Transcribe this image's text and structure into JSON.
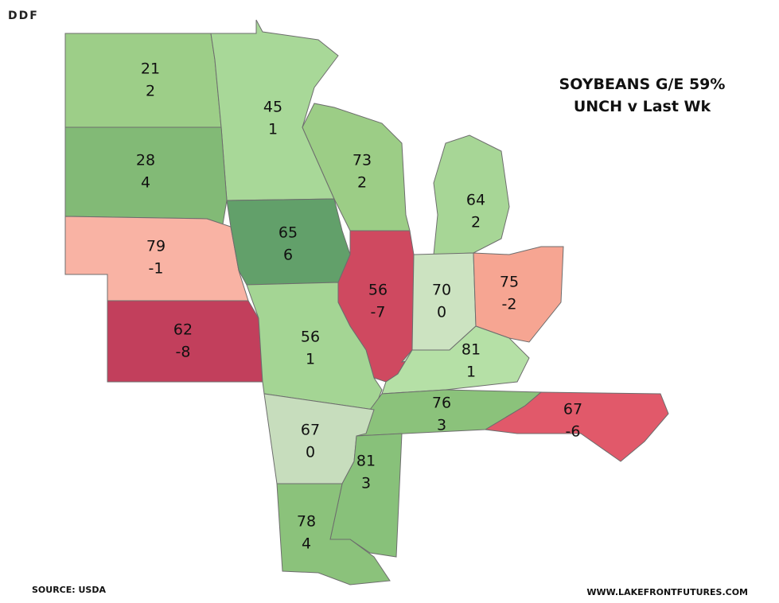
{
  "header": {
    "logo": "DDF",
    "title_line1": "SOYBEANS G/E 59%",
    "title_line2": "UNCH v Last Wk"
  },
  "regions": [
    {
      "rating": 21,
      "change": 2,
      "color": "#9dce88"
    },
    {
      "rating": 45,
      "change": 1,
      "color": "#a8d898"
    },
    {
      "rating": 28,
      "change": 4,
      "color": "#82ba76"
    },
    {
      "rating": 73,
      "change": 2,
      "color": "#9ccd86"
    },
    {
      "rating": 64,
      "change": 2,
      "color": "#a7d696"
    },
    {
      "rating": 79,
      "change": -1,
      "color": "#f9b3a4"
    },
    {
      "rating": 65,
      "change": 6,
      "color": "#62a06a"
    },
    {
      "rating": 56,
      "change": -7,
      "color": "#cf4960"
    },
    {
      "rating": 70,
      "change": 0,
      "color": "#cce3c1"
    },
    {
      "rating": 75,
      "change": -2,
      "color": "#f6a592"
    },
    {
      "rating": 62,
      "change": -8,
      "color": "#c23f5c"
    },
    {
      "rating": 56,
      "change": 1,
      "color": "#a4d594"
    },
    {
      "rating": 81,
      "change": 1,
      "color": "#b5e0a6"
    },
    {
      "rating": 76,
      "change": 3,
      "color": "#8bc27b"
    },
    {
      "rating": 67,
      "change": -6,
      "color": "#e1596a"
    },
    {
      "rating": 67,
      "change": 0,
      "color": "#c7ddbd"
    },
    {
      "rating": 81,
      "change": 3,
      "color": "#88c17a"
    },
    {
      "rating": 78,
      "change": 4,
      "color": "#8bc27b"
    }
  ],
  "footer": {
    "source": "SOURCE: USDA",
    "website": "WWW.LAKEFRONTFUTURES.COM"
  }
}
